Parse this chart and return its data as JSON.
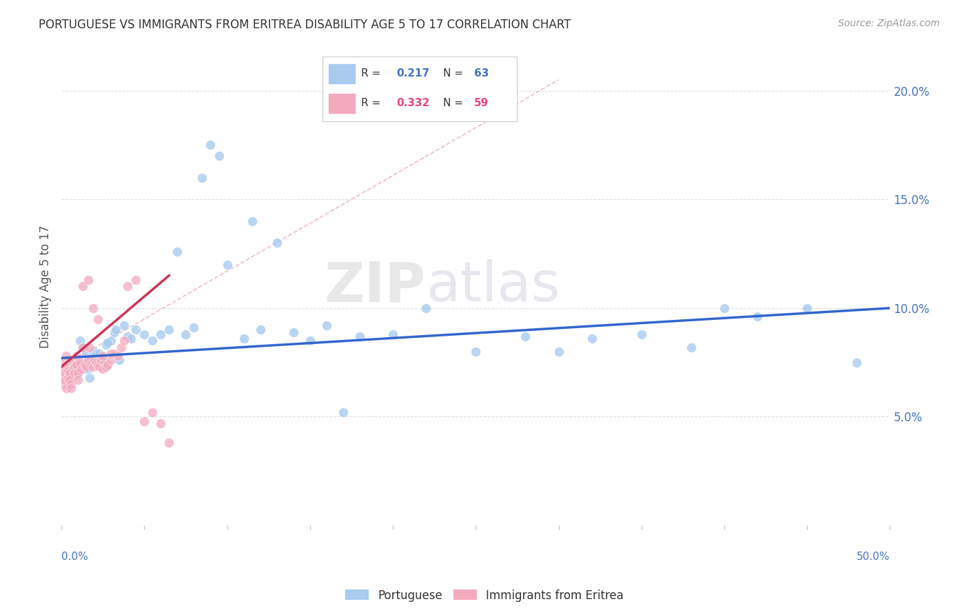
{
  "title": "PORTUGUESE VS IMMIGRANTS FROM ERITREA DISABILITY AGE 5 TO 17 CORRELATION CHART",
  "source": "Source: ZipAtlas.com",
  "ylabel": "Disability Age 5 to 17",
  "xlim": [
    0.0,
    0.5
  ],
  "ylim": [
    0.0,
    0.22
  ],
  "xticks": [
    0.0,
    0.05,
    0.1,
    0.15,
    0.2,
    0.25,
    0.3,
    0.35,
    0.4,
    0.45,
    0.5
  ],
  "yticks_right": [
    0.05,
    0.1,
    0.15,
    0.2
  ],
  "ytick_labels_right": [
    "5.0%",
    "10.0%",
    "15.0%",
    "20.0%"
  ],
  "legend_blue_r": "0.217",
  "legend_blue_n": "63",
  "legend_pink_r": "0.332",
  "legend_pink_n": "59",
  "blue_color": "#A8CBEE",
  "pink_color": "#F4AABE",
  "trend_blue_color": "#3366CC",
  "trend_pink_color": "#CC3355",
  "dashed_color": "#E8AABB",
  "watermark_zip": "ZIP",
  "watermark_atlas": "atlas",
  "blue_scatter_x": [
    0.003,
    0.005,
    0.007,
    0.009,
    0.01,
    0.011,
    0.012,
    0.013,
    0.014,
    0.015,
    0.016,
    0.017,
    0.018,
    0.019,
    0.02,
    0.021,
    0.022,
    0.023,
    0.025,
    0.027,
    0.03,
    0.032,
    0.035,
    0.038,
    0.04,
    0.045,
    0.05,
    0.06,
    0.065,
    0.07,
    0.08,
    0.09,
    0.1,
    0.11,
    0.12,
    0.13,
    0.14,
    0.15,
    0.16,
    0.18,
    0.2,
    0.22,
    0.25,
    0.28,
    0.3,
    0.32,
    0.35,
    0.38,
    0.4,
    0.42,
    0.45,
    0.48,
    0.008,
    0.024,
    0.028,
    0.033,
    0.042,
    0.055,
    0.075,
    0.085,
    0.095,
    0.115,
    0.17
  ],
  "blue_scatter_y": [
    0.076,
    0.071,
    0.069,
    0.071,
    0.07,
    0.085,
    0.075,
    0.082,
    0.072,
    0.079,
    0.072,
    0.068,
    0.077,
    0.08,
    0.08,
    0.079,
    0.076,
    0.079,
    0.076,
    0.083,
    0.085,
    0.089,
    0.076,
    0.092,
    0.087,
    0.09,
    0.088,
    0.088,
    0.09,
    0.126,
    0.091,
    0.175,
    0.12,
    0.086,
    0.09,
    0.13,
    0.089,
    0.085,
    0.092,
    0.087,
    0.088,
    0.1,
    0.08,
    0.087,
    0.08,
    0.086,
    0.088,
    0.082,
    0.1,
    0.096,
    0.1,
    0.075,
    0.073,
    0.076,
    0.084,
    0.09,
    0.086,
    0.085,
    0.088,
    0.16,
    0.17,
    0.14,
    0.052
  ],
  "pink_scatter_x": [
    0.001,
    0.001,
    0.001,
    0.001,
    0.002,
    0.002,
    0.002,
    0.003,
    0.003,
    0.003,
    0.004,
    0.004,
    0.005,
    0.005,
    0.006,
    0.006,
    0.007,
    0.007,
    0.008,
    0.008,
    0.009,
    0.009,
    0.01,
    0.01,
    0.011,
    0.012,
    0.013,
    0.014,
    0.015,
    0.016,
    0.017,
    0.018,
    0.019,
    0.02,
    0.021,
    0.022,
    0.023,
    0.024,
    0.025,
    0.026,
    0.027,
    0.028,
    0.03,
    0.032,
    0.034,
    0.036,
    0.038,
    0.04,
    0.045,
    0.05,
    0.055,
    0.06,
    0.065,
    0.013,
    0.016,
    0.019,
    0.022,
    0.025,
    0.03
  ],
  "pink_scatter_y": [
    0.075,
    0.072,
    0.068,
    0.065,
    0.073,
    0.07,
    0.067,
    0.078,
    0.074,
    0.063,
    0.071,
    0.068,
    0.07,
    0.067,
    0.065,
    0.063,
    0.075,
    0.072,
    0.073,
    0.07,
    0.078,
    0.074,
    0.07,
    0.067,
    0.075,
    0.072,
    0.082,
    0.074,
    0.073,
    0.076,
    0.082,
    0.074,
    0.073,
    0.076,
    0.075,
    0.074,
    0.073,
    0.076,
    0.072,
    0.075,
    0.073,
    0.074,
    0.076,
    0.079,
    0.078,
    0.082,
    0.085,
    0.11,
    0.113,
    0.048,
    0.052,
    0.047,
    0.038,
    0.11,
    0.113,
    0.1,
    0.095,
    0.078,
    0.079
  ],
  "blue_trend_x": [
    0.0,
    0.5
  ],
  "blue_trend_y": [
    0.077,
    0.1
  ],
  "pink_trend_x": [
    0.0,
    0.065
  ],
  "pink_trend_y": [
    0.073,
    0.115
  ],
  "dashed_trend_x": [
    0.0,
    0.3
  ],
  "dashed_trend_y": [
    0.073,
    0.205
  ],
  "background_color": "#FFFFFF",
  "grid_color": "#DDDDDD",
  "axis_color": "#BBBBBB"
}
